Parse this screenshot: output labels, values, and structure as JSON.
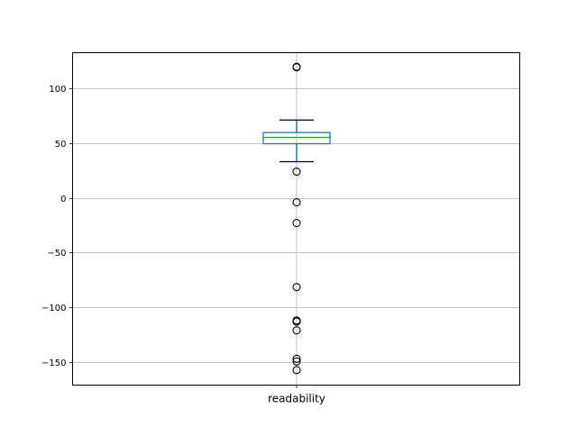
{
  "chart_data": {
    "type": "box",
    "title": "",
    "xlabel": "",
    "ylabel": "",
    "categories": [
      "readability"
    ],
    "ylim": [
      -171,
      132.5
    ],
    "yticks": [
      100,
      50,
      0,
      -50,
      -100,
      -150
    ],
    "ytick_labels": [
      "100",
      "50",
      "0",
      "−50",
      "−100",
      "−150"
    ],
    "grid": true,
    "boxes": [
      {
        "name": "readability",
        "q1": 49.4,
        "median": 55.2,
        "q3": 59.6,
        "whisker_low": 33,
        "whisker_high": 71,
        "outliers": [
          119.2,
          119.6,
          23.9,
          -4.1,
          -23,
          -81.5,
          -112,
          -113,
          -121,
          -147,
          -149.4,
          -157.3
        ]
      }
    ],
    "colors": {
      "box": "#1f77b4",
      "median": "#2ca02c",
      "whisker_cap": "#000000",
      "outlier": "#000000",
      "grid": "#b0b0b0"
    }
  }
}
